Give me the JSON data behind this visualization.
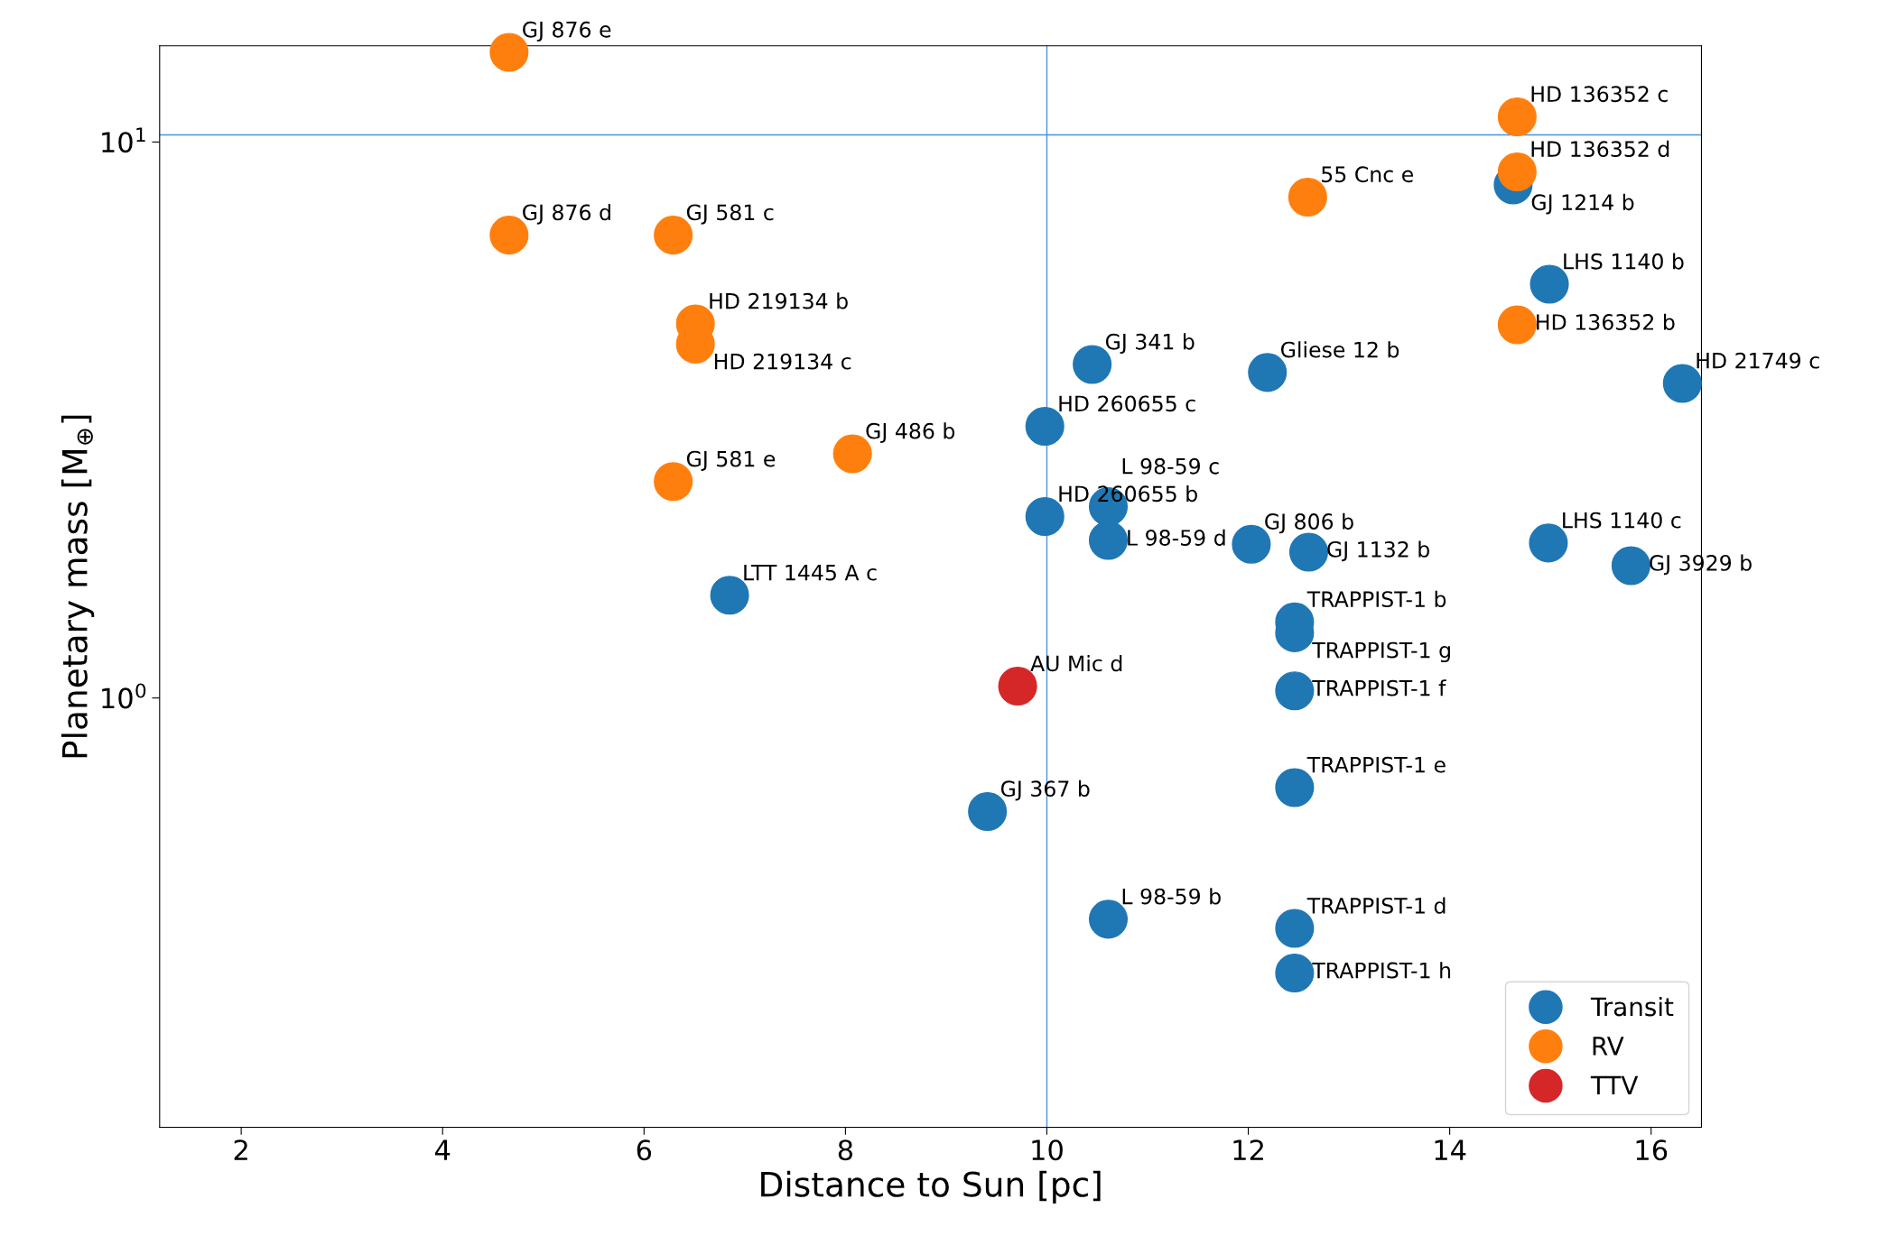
{
  "chart_data": {
    "type": "scatter",
    "xlabel": "Distance to Sun [pc]",
    "ylabel": "Planetary mass [M$_{⊕}$]",
    "log": "y",
    "xlim": [
      1.19,
      16.5
    ],
    "ylim": [
      0.169,
      14.9
    ],
    "xticks": [
      2,
      4,
      6,
      8,
      10,
      12,
      14,
      16
    ],
    "yticks": [
      {
        "value": 1,
        "label": "10$^{0}$"
      },
      {
        "value": 10,
        "label": "10$^{1}$"
      }
    ],
    "grid": false,
    "legend": "bottom right",
    "marker": "circle",
    "series": [
      {
        "name": "Transit",
        "color": "#1f77b4",
        "x": [
          14.63,
          14.99,
          16.31,
          10.45,
          12.19,
          9.98,
          9.98,
          10.61,
          10.61,
          12.03,
          12.6,
          14.98,
          15.8,
          6.85,
          12.46,
          12.46,
          12.46,
          12.46,
          9.41,
          10.61,
          12.46,
          12.46
        ],
        "values": [
          8.37,
          5.55,
          3.68,
          3.98,
          3.85,
          3.08,
          2.12,
          2.21,
          1.92,
          1.89,
          1.83,
          1.9,
          1.73,
          1.53,
          1.37,
          1.31,
          1.03,
          0.69,
          0.625,
          0.4,
          0.385,
          0.32
        ]
      },
      {
        "name": "RV",
        "color": "#ff7f0e",
        "x": [
          4.66,
          14.67,
          14.67,
          12.59,
          4.66,
          6.29,
          6.51,
          6.51,
          14.67,
          8.07,
          6.29
        ],
        "values": [
          14.5,
          11.1,
          8.84,
          7.96,
          6.8,
          6.8,
          4.71,
          4.33,
          4.69,
          2.75,
          2.45
        ]
      },
      {
        "name": "TTV",
        "color": "#d62728",
        "x": [
          9.71
        ],
        "values": [
          1.05
        ]
      }
    ],
    "ref_lines": [
      {
        "axis": "x",
        "value": 10,
        "color": "#4a90e2"
      },
      {
        "axis": "y",
        "value": 10.3,
        "color": "#4a90e2"
      }
    ],
    "annotations": [
      {
        "text": "GJ 1214 b",
        "x": 14.63,
        "y": 8.37
      },
      {
        "text": "LHS 1140 b",
        "x": 14.99,
        "y": 5.55
      },
      {
        "text": "HD 21749 c",
        "x": 16.31,
        "y": 3.68
      },
      {
        "text": "GJ 341 b",
        "x": 10.45,
        "y": 3.98
      },
      {
        "text": "Gliese 12 b",
        "x": 12.19,
        "y": 3.85
      },
      {
        "text": "HD 260655 c",
        "x": 9.98,
        "y": 3.08
      },
      {
        "text": "HD 260655 b",
        "x": 9.98,
        "y": 2.12
      },
      {
        "text": "L 98-59 c",
        "x": 10.61,
        "y": 2.21
      },
      {
        "text": "L 98-59 d",
        "x": 10.61,
        "y": 1.92
      },
      {
        "text": "GJ 806 b",
        "x": 12.03,
        "y": 1.89
      },
      {
        "text": "GJ 1132 b",
        "x": 12.6,
        "y": 1.83
      },
      {
        "text": "LHS 1140 c",
        "x": 14.98,
        "y": 1.9
      },
      {
        "text": "GJ 3929 b",
        "x": 15.8,
        "y": 1.73
      },
      {
        "text": "LTT 1445 A c",
        "x": 6.85,
        "y": 1.53
      },
      {
        "text": "TRAPPIST-1 b",
        "x": 12.46,
        "y": 1.37
      },
      {
        "text": "TRAPPIST-1 g",
        "x": 12.46,
        "y": 1.31
      },
      {
        "text": "TRAPPIST-1 f",
        "x": 12.46,
        "y": 1.03
      },
      {
        "text": "TRAPPIST-1 e",
        "x": 12.46,
        "y": 0.69
      },
      {
        "text": "GJ 367 b",
        "x": 9.41,
        "y": 0.625
      },
      {
        "text": "L 98-59 b",
        "x": 10.61,
        "y": 0.4
      },
      {
        "text": "TRAPPIST-1 d",
        "x": 12.46,
        "y": 0.385
      },
      {
        "text": "TRAPPIST-1 h",
        "x": 12.46,
        "y": 0.32
      },
      {
        "text": "GJ 876 e",
        "x": 4.66,
        "y": 14.5
      },
      {
        "text": "HD 136352 c",
        "x": 14.67,
        "y": 11.1
      },
      {
        "text": "HD 136352 d",
        "x": 14.67,
        "y": 8.84
      },
      {
        "text": "55 Cnc e",
        "x": 12.59,
        "y": 7.96
      },
      {
        "text": "GJ 876 d",
        "x": 4.66,
        "y": 6.8
      },
      {
        "text": "GJ 581 c",
        "x": 6.29,
        "y": 6.8
      },
      {
        "text": "HD 219134 b",
        "x": 6.51,
        "y": 4.71
      },
      {
        "text": "HD 219134 c",
        "x": 6.51,
        "y": 4.33
      },
      {
        "text": "HD 136352 b",
        "x": 14.67,
        "y": 4.69
      },
      {
        "text": "GJ 486 b",
        "x": 8.07,
        "y": 2.75
      },
      {
        "text": "GJ 581 e",
        "x": 6.29,
        "y": 2.45
      },
      {
        "text": "AU Mic d",
        "x": 9.71,
        "y": 1.05
      }
    ]
  }
}
